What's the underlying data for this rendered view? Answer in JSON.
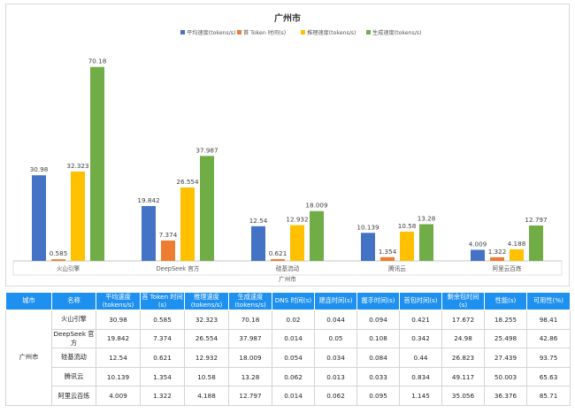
{
  "chart_data": {
    "type": "bar",
    "title": "广州市",
    "xlabel": "广州市",
    "categories": [
      "火山引擎",
      "DeepSeek 官方",
      "硅基流动",
      "腾讯云",
      "阿里云百炼"
    ],
    "series": [
      {
        "name": "平均速度(tokens/s)",
        "color": "#4472c4",
        "values": [
          30.98,
          19.842,
          12.54,
          10.139,
          4.009
        ],
        "labels": [
          "30.98",
          "19.842",
          "12.54",
          "10.139",
          "4.009"
        ]
      },
      {
        "name": "首 Token 时间(s)",
        "color": "#ed7d31",
        "values": [
          0.585,
          7.374,
          0.621,
          1.354,
          1.322
        ],
        "labels": [
          "0.585",
          "7.374",
          "0.621",
          "1.354",
          "1.322"
        ]
      },
      {
        "name": "推理速度(tokens/s)",
        "color": "#ffc000",
        "values": [
          32.323,
          26.554,
          12.932,
          10.58,
          4.188
        ],
        "labels": [
          "32.323",
          "26.554",
          "12.932",
          "10.58",
          "4.188"
        ]
      },
      {
        "name": "生成速度(tokens/s)",
        "color": "#70ad47",
        "values": [
          70.18,
          37.987,
          18.009,
          13.28,
          12.797
        ],
        "labels": [
          "70.18",
          "37.987",
          "18.009",
          "13.28",
          "12.797"
        ]
      }
    ],
    "ylim": [
      0,
      80
    ],
    "legend": "top",
    "grid": false
  },
  "table": {
    "headers": [
      "城市",
      "名称",
      "平均速度(tokens/s)",
      "首 Token 时间(s)",
      "推理速度(tokens/s)",
      "生成速度(tokens/s)",
      "DNS 时间(s)",
      "建连时间(s)",
      "握手时间(s)",
      "首包时间(s)",
      "剩余包时间(s)",
      "性能(s)",
      "可用性(%)"
    ],
    "city": "广州市",
    "rows": [
      [
        "火山引擎",
        "30.98",
        "0.585",
        "32.323",
        "70.18",
        "0.02",
        "0.044",
        "0.094",
        "0.421",
        "17.672",
        "18.255",
        "98.41"
      ],
      [
        "DeepSeek 官方",
        "19.842",
        "7.374",
        "26.554",
        "37.987",
        "0.014",
        "0.05",
        "0.108",
        "0.342",
        "24.98",
        "25.498",
        "42.86"
      ],
      [
        "硅基流动",
        "12.54",
        "0.621",
        "12.932",
        "18.009",
        "0.054",
        "0.034",
        "0.084",
        "0.44",
        "26.823",
        "27.439",
        "93.75"
      ],
      [
        "腾讯云",
        "10.139",
        "1.354",
        "10.58",
        "13.28",
        "0.062",
        "0.013",
        "0.033",
        "0.834",
        "49.117",
        "50.003",
        "65.63"
      ],
      [
        "阿里云百炼",
        "4.009",
        "1.322",
        "4.188",
        "12.797",
        "0.014",
        "0.062",
        "0.095",
        "1.145",
        "35.056",
        "36.376",
        "85.71"
      ]
    ]
  }
}
